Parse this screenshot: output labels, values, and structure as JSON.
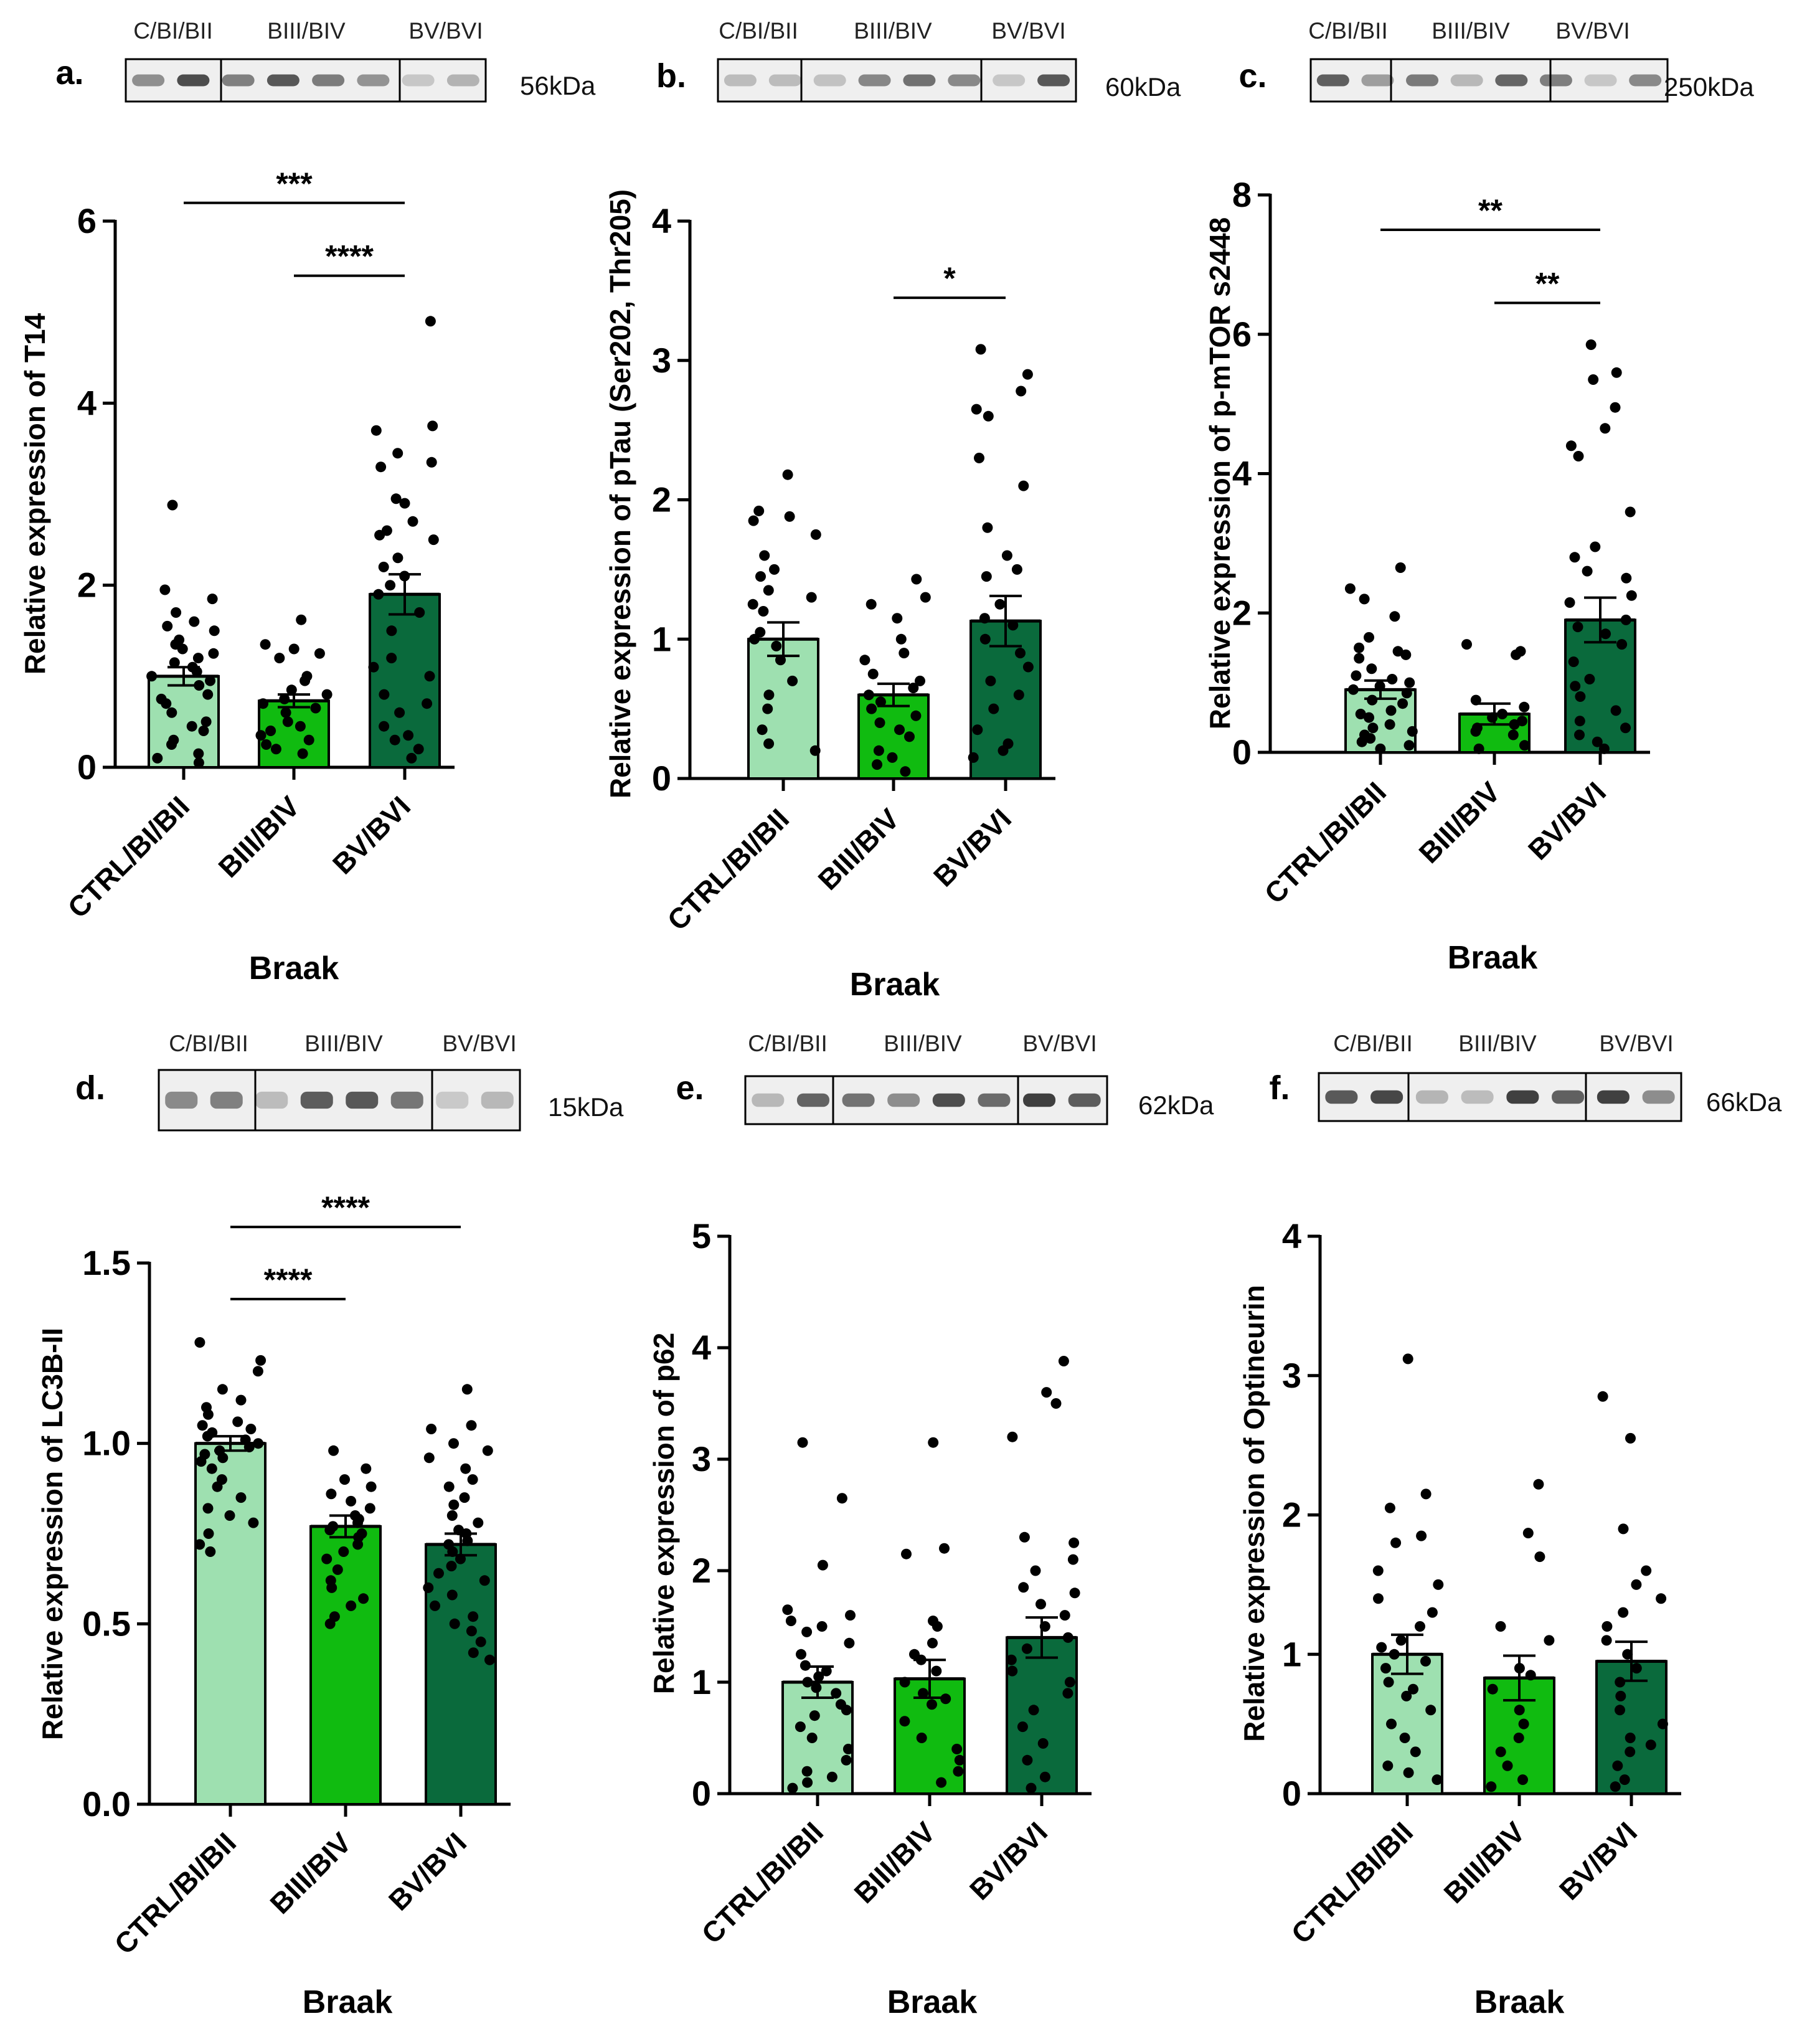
{
  "figure": {
    "x_title": "Braak",
    "colors": {
      "light": "#9ee0b0",
      "mid": "#10bb10",
      "dark": "#0a6a3c"
    }
  },
  "chart_data": [
    {
      "type": "bar",
      "panel": "a.",
      "blot_labels": [
        "C/BI/BII",
        "BIII/BIV",
        "BV/BVI"
      ],
      "kda": "56kDa",
      "categories": [
        "CTRL/BI/BII",
        "BIII/BIV",
        "BV/BVI"
      ],
      "values": [
        1.0,
        0.73,
        1.9
      ],
      "sem": [
        0.1,
        0.07,
        0.22
      ],
      "ylabel": "Relative expression of T14",
      "xlabel": "Braak",
      "ylim": [
        0,
        6
      ],
      "yticks": [
        0,
        2,
        4,
        6
      ],
      "ytick_labels": [
        "0",
        "2",
        "4",
        "6"
      ],
      "points": [
        [
          2.88,
          1.95,
          1.85,
          1.7,
          1.6,
          1.55,
          1.5,
          1.4,
          1.35,
          1.3,
          1.25,
          1.2,
          1.15,
          1.1,
          1.05,
          1.0,
          0.95,
          0.9,
          0.8,
          0.75,
          0.7,
          0.6,
          0.5,
          0.45,
          0.4,
          0.3,
          0.25,
          0.15,
          0.1,
          0.05
        ],
        [
          1.62,
          1.35,
          1.3,
          1.25,
          1.2,
          1.0,
          0.95,
          0.85,
          0.8,
          0.75,
          0.7,
          0.65,
          0.6,
          0.5,
          0.45,
          0.4,
          0.35,
          0.3,
          0.25,
          0.2,
          0.15
        ],
        [
          4.9,
          3.75,
          3.7,
          3.45,
          3.35,
          3.3,
          2.95,
          2.9,
          2.7,
          2.6,
          2.55,
          2.5,
          2.3,
          2.2,
          2.1,
          2.0,
          1.9,
          1.7,
          1.5,
          1.2,
          1.1,
          1.0,
          0.8,
          0.7,
          0.6,
          0.45,
          0.35,
          0.3,
          0.2,
          0.1
        ]
      ],
      "significance": [
        {
          "from": 0,
          "to": 2,
          "label": "***",
          "y": 6.2
        },
        {
          "from": 1,
          "to": 2,
          "label": "****",
          "y": 5.4
        }
      ]
    },
    {
      "type": "bar",
      "panel": "b.",
      "blot_labels": [
        "C/BI/BII",
        "BIII/BIV",
        "BV/BVI"
      ],
      "kda": "60kDa",
      "categories": [
        "CTRL/BI/BII",
        "BIII/BIV",
        "BV/BVI"
      ],
      "values": [
        1.0,
        0.6,
        1.13
      ],
      "sem": [
        0.12,
        0.08,
        0.18
      ],
      "ylabel": "Relative expression of pTau (Ser202, Thr205)",
      "xlabel": "Braak",
      "ylim": [
        0,
        4
      ],
      "yticks": [
        0,
        1,
        2,
        3,
        4
      ],
      "ytick_labels": [
        "0",
        "1",
        "2",
        "3",
        "4"
      ],
      "points": [
        [
          2.18,
          1.92,
          1.88,
          1.85,
          1.75,
          1.6,
          1.5,
          1.45,
          1.35,
          1.3,
          1.25,
          1.2,
          1.05,
          1.0,
          0.95,
          0.85,
          0.7,
          0.6,
          0.5,
          0.35,
          0.25,
          0.2
        ],
        [
          1.43,
          1.3,
          1.25,
          1.15,
          1.0,
          0.9,
          0.85,
          0.75,
          0.7,
          0.65,
          0.6,
          0.55,
          0.5,
          0.45,
          0.4,
          0.35,
          0.3,
          0.2,
          0.15,
          0.1,
          0.05
        ],
        [
          3.08,
          2.9,
          2.78,
          2.65,
          2.6,
          2.3,
          2.1,
          1.8,
          1.6,
          1.5,
          1.45,
          1.25,
          1.15,
          1.1,
          1.0,
          0.9,
          0.8,
          0.7,
          0.6,
          0.5,
          0.35,
          0.25,
          0.2,
          0.15
        ]
      ],
      "significance": [
        {
          "from": 1,
          "to": 2,
          "label": "*",
          "y": 3.45
        }
      ]
    },
    {
      "type": "bar",
      "panel": "c.",
      "blot_labels": [
        "C/BI/BII",
        "BIII/BIV",
        "BV/BVI"
      ],
      "kda": "250kDa",
      "categories": [
        "CTRL/BI/BII",
        "BIII/BIV",
        "BV/BVI"
      ],
      "values": [
        0.9,
        0.55,
        1.9
      ],
      "sem": [
        0.13,
        0.15,
        0.32
      ],
      "ylabel": "Relative expression of p-mTOR s2448",
      "xlabel": "Braak",
      "ylim": [
        0,
        8
      ],
      "yticks": [
        0,
        2,
        4,
        6,
        8
      ],
      "ytick_labels": [
        "0",
        "2",
        "4",
        "6",
        "8"
      ],
      "points": [
        [
          2.65,
          2.35,
          2.2,
          1.95,
          1.65,
          1.5,
          1.45,
          1.4,
          1.35,
          1.2,
          1.1,
          1.05,
          1.0,
          0.95,
          0.9,
          0.85,
          0.75,
          0.7,
          0.6,
          0.55,
          0.5,
          0.4,
          0.35,
          0.3,
          0.25,
          0.2,
          0.15,
          0.1,
          0.05
        ],
        [
          1.55,
          1.45,
          1.4,
          0.75,
          0.65,
          0.55,
          0.5,
          0.45,
          0.4,
          0.35,
          0.3,
          0.25,
          0.1,
          0.05
        ],
        [
          5.85,
          5.45,
          5.35,
          4.95,
          4.65,
          4.4,
          4.25,
          3.45,
          2.95,
          2.8,
          2.6,
          2.5,
          2.25,
          2.15,
          1.9,
          1.8,
          1.7,
          1.55,
          1.3,
          1.05,
          0.95,
          0.8,
          0.6,
          0.45,
          0.35,
          0.25,
          0.15,
          0.05
        ]
      ],
      "significance": [
        {
          "from": 0,
          "to": 2,
          "label": "**",
          "y": 7.5
        },
        {
          "from": 1,
          "to": 2,
          "label": "**",
          "y": 6.45
        }
      ]
    },
    {
      "type": "bar",
      "panel": "d.",
      "blot_labels": [
        "C/BI/BII",
        "BIII/BIV",
        "BV/BVI"
      ],
      "kda": "15kDa",
      "categories": [
        "CTRL/BI/BII",
        "BIII/BIV",
        "BV/BVI"
      ],
      "values": [
        1.0,
        0.77,
        0.72
      ],
      "sem": [
        0.02,
        0.03,
        0.03
      ],
      "ylabel": "Relative expression of LC3B-II",
      "xlabel": "Braak",
      "ylim": [
        0,
        1.5
      ],
      "yticks": [
        0,
        0.5,
        1.0,
        1.5
      ],
      "ytick_labels": [
        "0.0",
        "0.5",
        "1.0",
        "1.5"
      ],
      "points": [
        [
          1.28,
          1.23,
          1.2,
          1.15,
          1.12,
          1.1,
          1.08,
          1.06,
          1.05,
          1.04,
          1.03,
          1.02,
          1.01,
          1.0,
          0.99,
          0.98,
          0.97,
          0.96,
          0.95,
          0.93,
          0.9,
          0.88,
          0.85,
          0.82,
          0.8,
          0.78,
          0.75,
          0.72,
          0.7
        ],
        [
          0.98,
          0.93,
          0.9,
          0.88,
          0.86,
          0.84,
          0.82,
          0.8,
          0.79,
          0.78,
          0.77,
          0.76,
          0.75,
          0.74,
          0.72,
          0.7,
          0.68,
          0.65,
          0.62,
          0.6,
          0.57,
          0.55,
          0.52,
          0.5
        ],
        [
          1.15,
          1.05,
          1.04,
          1.0,
          0.98,
          0.96,
          0.93,
          0.9,
          0.88,
          0.85,
          0.83,
          0.8,
          0.78,
          0.76,
          0.75,
          0.73,
          0.72,
          0.7,
          0.68,
          0.66,
          0.64,
          0.62,
          0.6,
          0.58,
          0.55,
          0.52,
          0.5,
          0.48,
          0.45,
          0.42,
          0.4
        ]
      ],
      "significance": [
        {
          "from": 0,
          "to": 2,
          "label": "****",
          "y": 1.6
        },
        {
          "from": 0,
          "to": 1,
          "label": "****",
          "y": 1.4
        }
      ]
    },
    {
      "type": "bar",
      "panel": "e.",
      "blot_labels": [
        "C/BI/BII",
        "BIII/BIV",
        "BV/BVI"
      ],
      "kda": "62kDa",
      "categories": [
        "CTRL/BI/BII",
        "BIII/BIV",
        "BV/BVI"
      ],
      "values": [
        1.0,
        1.03,
        1.4
      ],
      "sem": [
        0.14,
        0.17,
        0.18
      ],
      "ylabel": "Relative expression of p62",
      "xlabel": "Braak",
      "ylim": [
        0,
        5
      ],
      "yticks": [
        0,
        1,
        2,
        3,
        4,
        5
      ],
      "ytick_labels": [
        "0",
        "1",
        "2",
        "3",
        "4",
        "5"
      ],
      "points": [
        [
          3.15,
          2.65,
          2.05,
          1.65,
          1.6,
          1.55,
          1.5,
          1.45,
          1.35,
          1.25,
          1.15,
          1.1,
          1.05,
          1.0,
          0.95,
          0.9,
          0.8,
          0.75,
          0.7,
          0.6,
          0.5,
          0.4,
          0.3,
          0.2,
          0.15,
          0.1,
          0.05
        ],
        [
          3.15,
          2.2,
          2.15,
          1.55,
          1.5,
          1.35,
          1.25,
          1.2,
          1.1,
          1.0,
          0.9,
          0.85,
          0.8,
          0.65,
          0.5,
          0.4,
          0.3,
          0.2,
          0.1
        ],
        [
          3.88,
          3.6,
          3.5,
          3.2,
          2.3,
          2.25,
          2.1,
          2.0,
          1.85,
          1.8,
          1.7,
          1.6,
          1.5,
          1.4,
          1.3,
          1.2,
          1.1,
          1.0,
          0.9,
          0.75,
          0.6,
          0.45,
          0.3,
          0.15,
          0.05
        ]
      ],
      "significance": []
    },
    {
      "type": "bar",
      "panel": "f.",
      "blot_labels": [
        "C/BI/BII",
        "BIII/BIV",
        "BV/BVI"
      ],
      "kda": "66kDa",
      "categories": [
        "CTRL/BI/BII",
        "BIII/BIV",
        "BV/BVI"
      ],
      "values": [
        1.0,
        0.83,
        0.95
      ],
      "sem": [
        0.14,
        0.16,
        0.14
      ],
      "ylabel": "Relative expression of Optineurin",
      "xlabel": "Braak",
      "ylim": [
        0,
        4
      ],
      "yticks": [
        0,
        1,
        2,
        3,
        4
      ],
      "ytick_labels": [
        "0",
        "1",
        "2",
        "3",
        "4"
      ],
      "points": [
        [
          3.12,
          2.15,
          2.05,
          1.85,
          1.8,
          1.6,
          1.5,
          1.4,
          1.3,
          1.2,
          1.1,
          1.05,
          1.0,
          0.95,
          0.9,
          0.8,
          0.75,
          0.7,
          0.6,
          0.5,
          0.4,
          0.3,
          0.2,
          0.15,
          0.1
        ],
        [
          2.22,
          1.87,
          1.7,
          1.2,
          1.1,
          0.9,
          0.85,
          0.75,
          0.6,
          0.5,
          0.4,
          0.3,
          0.2,
          0.1,
          0.05
        ],
        [
          2.85,
          2.55,
          1.9,
          1.6,
          1.5,
          1.4,
          1.3,
          1.2,
          1.1,
          1.0,
          0.9,
          0.8,
          0.7,
          0.6,
          0.5,
          0.4,
          0.35,
          0.3,
          0.2,
          0.1,
          0.05
        ]
      ],
      "significance": []
    }
  ]
}
